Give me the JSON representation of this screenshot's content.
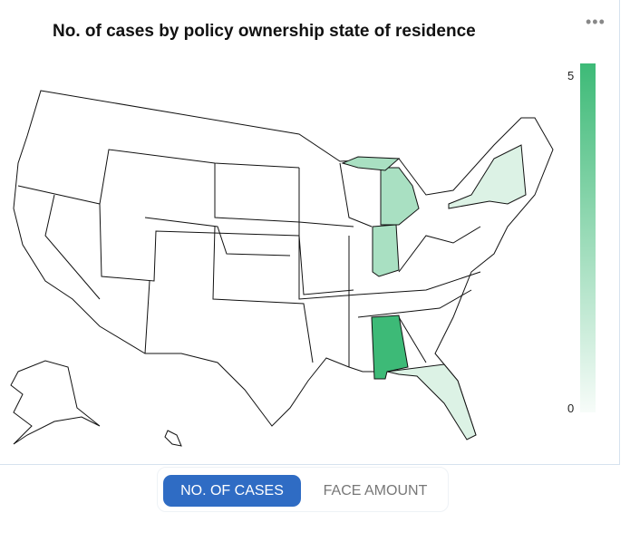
{
  "title": "No. of cases by policy ownership state of residence",
  "menu_icon": "more-horizontal-icon",
  "legend": {
    "max": "5",
    "min": "0",
    "color_max": "#3dba77",
    "color_min": "#f7fcf9"
  },
  "states": [
    {
      "name": "Alabama",
      "value": 5,
      "color": "#3dba77"
    },
    {
      "name": "Michigan",
      "value": 2,
      "color": "#a9e0c2"
    },
    {
      "name": "Indiana",
      "value": 2,
      "color": "#a9e0c2"
    },
    {
      "name": "New York",
      "value": 1,
      "color": "#dcf2e5"
    },
    {
      "name": "Florida",
      "value": 1,
      "color": "#dcf2e5"
    }
  ],
  "toggle": {
    "active": "NO. OF CASES",
    "inactive": "FACE AMOUNT"
  }
}
